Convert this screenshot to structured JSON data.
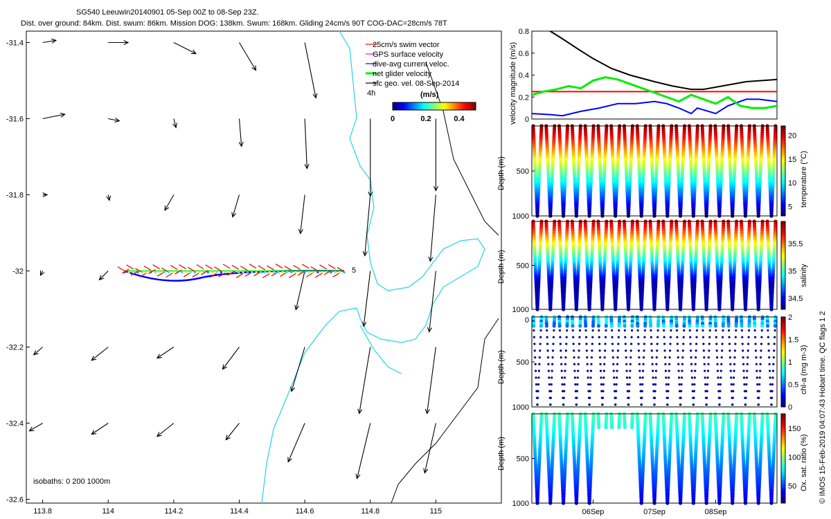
{
  "header": {
    "line1": "SG540 Leeuwin20140901 05-Sep 00Z to 08-Sep 23Z.",
    "line2": "Dist. over ground: 84km. Dist. swum: 86km. Mission DOG: 138km. Swum: 168km. Gliding 24cm/s 90T COG-DAC=28cm/s 78T"
  },
  "watermark": "© IMOS 15-Feb-2019 04:07:43 Hobart time. QC flags 1  2",
  "colors": {
    "coast": "#22d3e6",
    "isobath": "#000000",
    "swim": "#ff0000",
    "gps": "#ff00ff",
    "dac": "#0000ff",
    "net": "#00ee00",
    "geo": "#000000"
  },
  "chart_data": [
    {
      "type": "scatter",
      "subtype": "map",
      "xlim": [
        113.75,
        115.2
      ],
      "ylim": [
        -32.61,
        -31.37
      ],
      "xticks": [
        113.8,
        114,
        114.2,
        114.4,
        114.6,
        114.8,
        115
      ],
      "yticks": [
        -31.4,
        -31.6,
        -31.8,
        -32,
        -32.2,
        -32.4,
        -32.6
      ],
      "legend": [
        "25cm/s swim vector",
        "GPS surface velocity",
        "dive-avg current veloc.",
        "net glider velocity",
        "sfc geo. vel. 08-Sep-2014"
      ],
      "legend_location": "top-right",
      "arrow_scale_label": "4h",
      "colorbar": {
        "label": "(m/s)",
        "ticks": [
          0,
          0.2,
          0.4
        ],
        "range": [
          0,
          0.5
        ]
      },
      "isobaths_label": "isobaths: 0   200  1000m",
      "track_end_label": "5",
      "glider_track": {
        "lon": [
          114.72,
          114.05
        ],
        "lat": [
          -32.0,
          -32.0
        ]
      },
      "geo_velocity_vectors": [
        {
          "lon": 113.8,
          "lat": -31.4,
          "u": 0.12,
          "v": 0.02
        },
        {
          "lon": 114.0,
          "lat": -31.4,
          "u": 0.18,
          "v": 0.0
        },
        {
          "lon": 114.2,
          "lat": -31.4,
          "u": 0.2,
          "v": -0.1
        },
        {
          "lon": 114.4,
          "lat": -31.4,
          "u": 0.15,
          "v": -0.25
        },
        {
          "lon": 114.6,
          "lat": -31.4,
          "u": 0.1,
          "v": -0.5
        },
        {
          "lon": 113.8,
          "lat": -31.6,
          "u": 0.2,
          "v": 0.04
        },
        {
          "lon": 114.0,
          "lat": -31.6,
          "u": 0.1,
          "v": -0.02
        },
        {
          "lon": 114.2,
          "lat": -31.6,
          "u": 0.02,
          "v": -0.08
        },
        {
          "lon": 114.4,
          "lat": -31.6,
          "u": 0.02,
          "v": -0.25
        },
        {
          "lon": 114.6,
          "lat": -31.6,
          "u": 0.02,
          "v": -0.45
        },
        {
          "lon": 114.8,
          "lat": -31.6,
          "u": 0.0,
          "v": -0.7
        },
        {
          "lon": 115.0,
          "lat": -31.6,
          "u": 0.0,
          "v": -0.65
        },
        {
          "lon": 113.8,
          "lat": -31.8,
          "u": 0.04,
          "v": 0.0
        },
        {
          "lon": 114.0,
          "lat": -31.8,
          "u": 0.01,
          "v": -0.05
        },
        {
          "lon": 114.2,
          "lat": -31.8,
          "u": -0.08,
          "v": -0.14
        },
        {
          "lon": 114.4,
          "lat": -31.8,
          "u": -0.06,
          "v": -0.2
        },
        {
          "lon": 114.6,
          "lat": -31.8,
          "u": -0.04,
          "v": -0.35
        },
        {
          "lon": 114.8,
          "lat": -31.8,
          "u": -0.05,
          "v": -0.55
        },
        {
          "lon": 115.0,
          "lat": -31.8,
          "u": -0.05,
          "v": -0.6
        },
        {
          "lon": 113.8,
          "lat": -32.0,
          "u": -0.02,
          "v": -0.04
        },
        {
          "lon": 114.0,
          "lat": -32.0,
          "u": -0.08,
          "v": -0.08
        },
        {
          "lon": 114.6,
          "lat": -32.0,
          "u": -0.08,
          "v": -0.35
        },
        {
          "lon": 114.8,
          "lat": -32.0,
          "u": -0.06,
          "v": -0.5
        },
        {
          "lon": 115.0,
          "lat": -32.0,
          "u": -0.06,
          "v": -0.55
        },
        {
          "lon": 113.8,
          "lat": -32.2,
          "u": -0.08,
          "v": -0.07
        },
        {
          "lon": 114.0,
          "lat": -32.2,
          "u": -0.15,
          "v": -0.12
        },
        {
          "lon": 114.2,
          "lat": -32.2,
          "u": -0.15,
          "v": -0.1
        },
        {
          "lon": 114.4,
          "lat": -32.2,
          "u": -0.15,
          "v": -0.2
        },
        {
          "lon": 114.6,
          "lat": -32.2,
          "u": -0.12,
          "v": -0.4
        },
        {
          "lon": 114.8,
          "lat": -32.2,
          "u": -0.1,
          "v": -0.6
        },
        {
          "lon": 115.0,
          "lat": -32.2,
          "u": -0.08,
          "v": -0.6
        },
        {
          "lon": 113.8,
          "lat": -32.4,
          "u": -0.12,
          "v": -0.07
        },
        {
          "lon": 114.0,
          "lat": -32.4,
          "u": -0.15,
          "v": -0.1
        },
        {
          "lon": 114.2,
          "lat": -32.4,
          "u": -0.15,
          "v": -0.12
        },
        {
          "lon": 114.4,
          "lat": -32.4,
          "u": -0.12,
          "v": -0.15
        },
        {
          "lon": 114.6,
          "lat": -32.4,
          "u": -0.15,
          "v": -0.35
        },
        {
          "lon": 114.8,
          "lat": -32.4,
          "u": -0.12,
          "v": -0.5
        },
        {
          "lon": 115.0,
          "lat": -32.4,
          "u": -0.1,
          "v": -0.45
        }
      ]
    },
    {
      "type": "line",
      "xlim": [
        "05Sep",
        "09Sep"
      ],
      "xticks": [
        "06Sep",
        "07Sep",
        "08Sep"
      ],
      "ylabel": "velocity magnitude (m/s)",
      "ylim": [
        0,
        0.8
      ],
      "yticks": [
        0,
        0.2,
        0.4,
        0.6,
        0.8
      ],
      "series": [
        {
          "color": "#000000",
          "x": [
            0.0,
            0.3,
            0.5,
            0.8,
            1.0,
            1.3,
            1.6,
            1.8,
            2.0,
            2.3,
            2.6,
            2.8,
            3.1,
            3.5,
            4.0
          ],
          "y": [
            0.86,
            0.8,
            0.73,
            0.62,
            0.55,
            0.46,
            0.4,
            0.37,
            0.34,
            0.3,
            0.27,
            0.27,
            0.3,
            0.34,
            0.36
          ]
        },
        {
          "color": "#0000ff",
          "x": [
            0.0,
            0.3,
            0.5,
            0.8,
            1.1,
            1.4,
            1.7,
            2.0,
            2.2,
            2.4,
            2.6,
            2.7,
            3.0,
            3.2,
            3.5,
            3.7,
            4.0
          ],
          "y": [
            0.05,
            0.04,
            0.03,
            0.07,
            0.1,
            0.14,
            0.14,
            0.16,
            0.14,
            0.1,
            0.05,
            0.1,
            0.05,
            0.12,
            0.18,
            0.18,
            0.16
          ]
        },
        {
          "color": "#ff0000",
          "x": [
            0.0,
            4.0
          ],
          "y": [
            0.25,
            0.25
          ]
        },
        {
          "color": "#00ee00",
          "x": [
            0.0,
            0.2,
            0.4,
            0.6,
            0.8,
            1.0,
            1.2,
            1.4,
            1.6,
            1.8,
            2.0,
            2.2,
            2.4,
            2.6,
            2.8,
            3.0,
            3.2,
            3.4,
            3.6,
            3.8,
            4.0
          ],
          "y": [
            0.22,
            0.25,
            0.27,
            0.3,
            0.28,
            0.35,
            0.38,
            0.36,
            0.32,
            0.28,
            0.24,
            0.2,
            0.16,
            0.22,
            0.18,
            0.14,
            0.2,
            0.12,
            0.1,
            0.1,
            0.12
          ]
        }
      ]
    },
    {
      "type": "scatter",
      "ylabel": "Depth (m)",
      "ylim": [
        1000,
        0
      ],
      "yticks": [
        500,
        1000
      ],
      "colorbar": {
        "label": "temperature (°C)",
        "ticks": [
          5,
          10,
          15,
          20
        ],
        "range": [
          3,
          22
        ]
      },
      "profiles_per_day": 5,
      "dives": 19,
      "max_depth": 1000
    },
    {
      "type": "scatter",
      "ylabel": "Depth (m)",
      "ylim": [
        1000,
        0
      ],
      "yticks": [
        500,
        1000
      ],
      "colorbar": {
        "label": "salinity",
        "ticks": [
          34.5,
          35,
          35.5
        ],
        "range": [
          34.3,
          35.9
        ]
      },
      "dives": 19,
      "max_depth": 1000
    },
    {
      "type": "scatter",
      "ylabel": "Depth (m)",
      "ylim": [
        1000,
        0
      ],
      "yticks": [
        0,
        500,
        1000
      ],
      "colorbar": {
        "label": "chl-a (mg m-3)",
        "ticks": [
          0,
          0.5,
          1,
          1.5,
          2
        ],
        "range": [
          0,
          2
        ]
      },
      "dives": 19,
      "max_depth": 1000
    },
    {
      "type": "scatter",
      "ylabel": "Depth (m)",
      "ylim": [
        1000,
        0
      ],
      "yticks": [
        500,
        1000
      ],
      "colorbar": {
        "label": "Ox. sat. ratio (%)",
        "ticks": [
          50,
          100,
          150
        ],
        "range": [
          20,
          175
        ]
      },
      "dives": 19,
      "max_depth": 1000
    }
  ]
}
